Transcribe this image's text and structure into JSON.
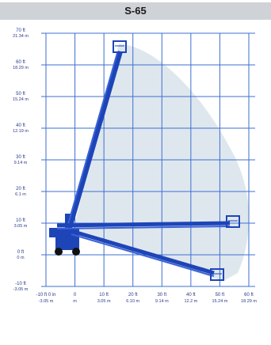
{
  "title": "S-65",
  "y_ticks": [
    {
      "value": 70,
      "ft": "70 ft",
      "m": "21.34 m"
    },
    {
      "value": 60,
      "ft": "60 ft",
      "m": "18.29 m"
    },
    {
      "value": 50,
      "ft": "50 ft",
      "m": "15.24 m"
    },
    {
      "value": 40,
      "ft": "40 ft",
      "m": "12.19 m"
    },
    {
      "value": 30,
      "ft": "30 ft",
      "m": "9.14 m"
    },
    {
      "value": 20,
      "ft": "20 ft",
      "m": "6.1 m"
    },
    {
      "value": 10,
      "ft": "10 ft",
      "m": "3.05 m"
    },
    {
      "value": 0,
      "ft": "0 ft",
      "m": "0 m"
    },
    {
      "value": -10,
      "ft": "-10 ft",
      "m": "-3.05 m"
    }
  ],
  "x_ticks": [
    {
      "value": -10,
      "ft": "-10 ft 0 in",
      "m": "-3.05 m"
    },
    {
      "value": 0,
      "ft": "0",
      "m": "m"
    },
    {
      "value": 10,
      "ft": "10 ft",
      "m": "3.05 m"
    },
    {
      "value": 20,
      "ft": "20 ft",
      "m": "6.10 m"
    },
    {
      "value": 30,
      "ft": "30 ft",
      "m": "9.14 m"
    },
    {
      "value": 40,
      "ft": "40 ft",
      "m": "12.2 m"
    },
    {
      "value": 50,
      "ft": "50 ft",
      "m": "15.24 m"
    },
    {
      "value": 60,
      "ft": "60 ft",
      "m": "18.29 m"
    }
  ],
  "colors": {
    "grid": "#3d6fd0",
    "envelope": "#dfe7ee",
    "boom": "#1d45b8",
    "text": "#2a3a8a",
    "title_bar": "#cfd3d8"
  }
}
